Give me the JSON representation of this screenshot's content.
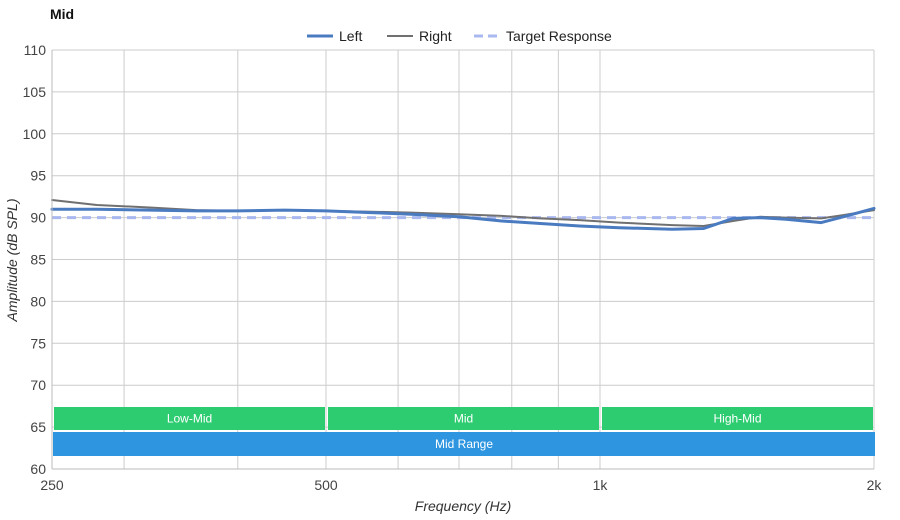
{
  "chart_data": {
    "type": "line",
    "title": "Mid",
    "xlabel": "Frequency (Hz)",
    "ylabel": "Amplitude (dB SPL)",
    "x_scale": "log",
    "xlim": [
      250,
      2000
    ],
    "ylim": [
      60,
      110
    ],
    "x_ticks": [
      {
        "value": 250,
        "label": "250"
      },
      {
        "value": 500,
        "label": "500"
      },
      {
        "value": 1000,
        "label": "1k"
      },
      {
        "value": 2000,
        "label": "2k"
      }
    ],
    "x_minor_grid": [
      300,
      400,
      600,
      700,
      800,
      900
    ],
    "y_ticks": [
      60,
      65,
      70,
      75,
      80,
      85,
      90,
      95,
      100,
      105,
      110
    ],
    "grid": true,
    "legend_position": "top-center",
    "series": [
      {
        "name": "Left",
        "color": "#4a7bc0",
        "style": "solid-thick",
        "x": [
          250,
          280,
          320,
          360,
          400,
          450,
          500,
          560,
          620,
          700,
          780,
          860,
          950,
          1050,
          1200,
          1300,
          1400,
          1500,
          1600,
          1750,
          1850,
          2000
        ],
        "y": [
          91.0,
          91.0,
          90.9,
          90.8,
          90.8,
          90.9,
          90.8,
          90.6,
          90.4,
          90.1,
          89.6,
          89.3,
          89.0,
          88.8,
          88.6,
          88.7,
          89.9,
          90.0,
          89.8,
          89.4,
          90.1,
          91.1
        ]
      },
      {
        "name": "Right",
        "color": "#707070",
        "style": "solid",
        "x": [
          250,
          280,
          320,
          360,
          400,
          450,
          500,
          560,
          620,
          700,
          780,
          860,
          950,
          1050,
          1200,
          1300,
          1400,
          1500,
          1600,
          1750,
          1850,
          2000
        ],
        "y": [
          92.1,
          91.5,
          91.2,
          90.9,
          90.8,
          90.9,
          90.8,
          90.7,
          90.6,
          90.4,
          90.2,
          89.9,
          89.7,
          89.4,
          89.1,
          89.0,
          89.6,
          90.1,
          90.0,
          89.9,
          90.3,
          90.9
        ]
      },
      {
        "name": "Target Response",
        "color": "#aab8f0",
        "style": "dashed",
        "x": [
          250,
          2000
        ],
        "y": [
          90,
          90
        ]
      }
    ],
    "bands": [
      {
        "label": "Low-Mid",
        "x_start": 250,
        "x_end": 500,
        "row": 0,
        "color": "#2ecc71"
      },
      {
        "label": "Mid",
        "x_start": 500,
        "x_end": 1000,
        "row": 0,
        "color": "#2ecc71"
      },
      {
        "label": "High-Mid",
        "x_start": 1000,
        "x_end": 2000,
        "row": 0,
        "color": "#2ecc71"
      },
      {
        "label": "Mid Range",
        "x_start": 250,
        "x_end": 2000,
        "row": 1,
        "color": "#2e96e0"
      }
    ]
  }
}
